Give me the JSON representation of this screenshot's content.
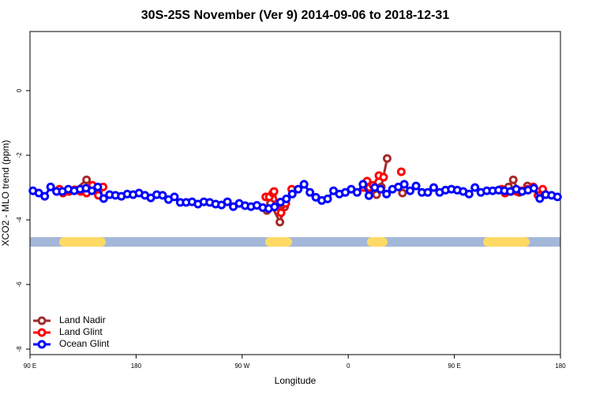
{
  "chart_data": {
    "type": "line",
    "title": "30S-25S November (Ver 9)   2014-09-06 to 2018-12-31",
    "xlabel": "Longitude",
    "ylabel": "XCO2 - MLO trend (ppm)",
    "xlim": [
      90,
      540
    ],
    "xticks": [
      {
        "value": 90,
        "label": "90 E"
      },
      {
        "value": 180,
        "label": "180"
      },
      {
        "value": 270,
        "label": "90 W"
      },
      {
        "value": 360,
        "label": "0"
      },
      {
        "value": 450,
        "label": "90 E"
      },
      {
        "value": 540,
        "label": "180"
      }
    ],
    "ylim": [
      -8.17,
      1.83
    ],
    "yticks": [
      0,
      -2,
      -4,
      -6,
      -8
    ],
    "legend": "bottomleft",
    "series": [
      {
        "name": "Land Nadir",
        "color": "#a52a2a",
        "x": [
          128,
          138,
          143,
          148,
          null,
          291,
          294,
          302,
          306,
          null,
          378,
          384,
          388,
          393,
          null,
          406,
          null,
          496,
          500,
          505,
          512
        ],
        "values": [
          -3.07,
          -2.76,
          -3.02,
          -3.15,
          null,
          -3.71,
          -3.49,
          -4.07,
          -3.6,
          null,
          -3.05,
          -3.22,
          -2.98,
          -2.1,
          null,
          -3.17,
          null,
          -2.98,
          -2.76,
          -3.15,
          -2.95
        ]
      },
      {
        "name": "Land Glint",
        "color": "#ff0000",
        "x": [
          115,
          118,
          123,
          128,
          133,
          138,
          143,
          148,
          152,
          null,
          290,
          293,
          296,
          297,
          300,
          303,
          307,
          312,
          null,
          373,
          376,
          378,
          381,
          386,
          390,
          null,
          405,
          null,
          490,
          493,
          498,
          503,
          507,
          512,
          517,
          521,
          525
        ],
        "values": [
          -3.05,
          -3.17,
          -3.12,
          -3.07,
          -3.12,
          -3.17,
          -2.93,
          -3.24,
          -2.98,
          null,
          -3.29,
          -3.29,
          -3.17,
          -3.12,
          -3.49,
          -3.78,
          -3.49,
          -3.05,
          null,
          -3.0,
          -2.8,
          -3.0,
          -2.93,
          -2.63,
          -2.68,
          null,
          -2.51,
          null,
          -3.05,
          -3.17,
          -3.12,
          -3.12,
          -3.1,
          -3.05,
          -2.98,
          -3.24,
          -3.05
        ]
      },
      {
        "name": "Ocean Glint",
        "color": "#0000ff",
        "x": [
          92.5,
          97.5,
          102.5,
          107.5,
          112.5,
          117.5,
          122.5,
          127.5,
          132.5,
          137.5,
          142.5,
          147.5,
          152.5,
          157.5,
          162.5,
          167.5,
          172.5,
          177.5,
          182.5,
          187.5,
          192.5,
          197.5,
          202.5,
          207.5,
          212.5,
          217.5,
          222.5,
          227.5,
          232.5,
          237.5,
          242.5,
          247.5,
          252.5,
          257.5,
          262.5,
          267.5,
          272.5,
          277.5,
          282.5,
          287.5,
          292.5,
          297.5,
          302.5,
          307.5,
          312.5,
          317.5,
          322.5,
          327.5,
          332.5,
          337.5,
          342.5,
          347.5,
          352.5,
          357.5,
          362.5,
          367.5,
          372.5,
          377.5,
          382.5,
          387.5,
          392.5,
          397.5,
          402.5,
          407.5,
          412.5,
          417.5,
          422.5,
          427.5,
          432.5,
          437.5,
          442.5,
          447.5,
          452.5,
          457.5,
          462.5,
          467.5,
          472.5,
          477.5,
          482.5,
          487.5,
          492.5,
          497.5,
          502.5,
          507.5,
          512.5,
          517.5,
          522.5,
          527.5,
          532.5,
          537.5
        ],
        "values": [
          -3.1,
          -3.17,
          -3.27,
          -2.98,
          -3.12,
          -3.12,
          -3.05,
          -3.1,
          -3.05,
          -3.02,
          -3.1,
          -2.98,
          -3.34,
          -3.22,
          -3.24,
          -3.27,
          -3.2,
          -3.22,
          -3.17,
          -3.24,
          -3.32,
          -3.22,
          -3.24,
          -3.37,
          -3.29,
          -3.46,
          -3.46,
          -3.44,
          -3.51,
          -3.44,
          -3.46,
          -3.51,
          -3.54,
          -3.44,
          -3.59,
          -3.49,
          -3.56,
          -3.59,
          -3.55,
          -3.62,
          -3.65,
          -3.6,
          -3.45,
          -3.35,
          -3.2,
          -3.05,
          -2.9,
          -3.15,
          -3.3,
          -3.4,
          -3.35,
          -3.1,
          -3.2,
          -3.15,
          -3.05,
          -3.15,
          -2.9,
          -3.25,
          -3.0,
          -3.05,
          -3.2,
          -3.05,
          -2.98,
          -2.9,
          -3.1,
          -2.95,
          -3.15,
          -3.15,
          -3.0,
          -3.15,
          -3.08,
          -3.05,
          -3.08,
          -3.12,
          -3.2,
          -3.0,
          -3.15,
          -3.1,
          -3.1,
          -3.08,
          -3.1,
          -3.12,
          -3.05,
          -3.12,
          -3.08,
          -3.02,
          -3.34,
          -3.22,
          -3.24,
          -3.29
        ]
      }
    ]
  }
}
